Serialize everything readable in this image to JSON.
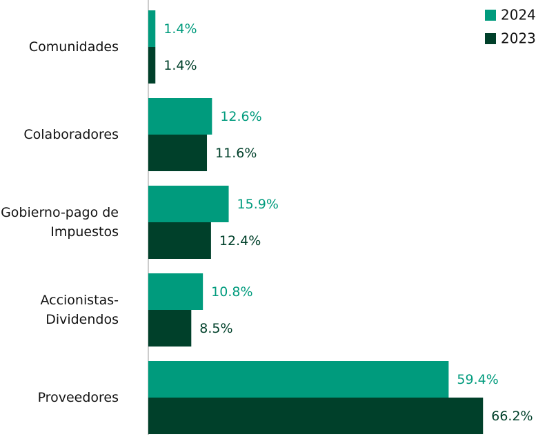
{
  "chart_data": {
    "type": "bar",
    "orientation": "horizontal",
    "categories": [
      "Comunidades",
      "Colaboradores",
      "Gobierno-pago de Impuestos",
      "Accionistas-Dividendos",
      "Proveedores"
    ],
    "series": [
      {
        "name": "2024",
        "color": "#009b7d",
        "values": [
          1.4,
          12.6,
          15.9,
          10.8,
          59.4
        ],
        "value_labels": [
          "1.4%",
          "12.6%",
          "15.9%",
          "10.8%",
          "59.4%"
        ]
      },
      {
        "name": "2023",
        "color": "#00402a",
        "values": [
          1.4,
          11.6,
          12.4,
          8.5,
          66.2
        ],
        "value_labels": [
          "1.4%",
          "11.6%",
          "12.4%",
          "8.5%",
          "66.2%"
        ]
      }
    ],
    "legend": "top-right"
  }
}
